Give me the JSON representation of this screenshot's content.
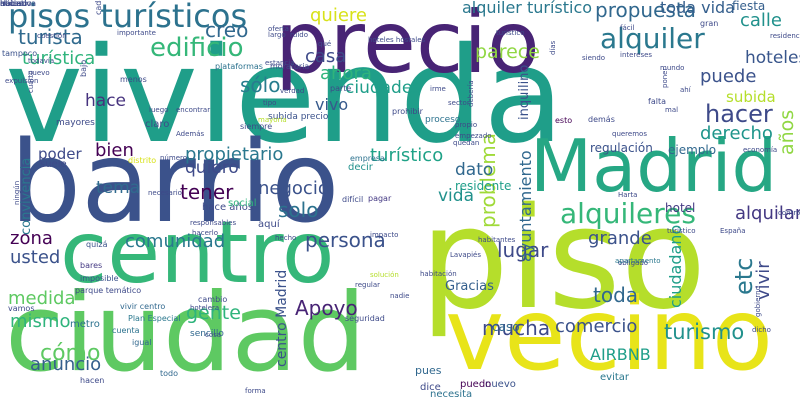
{
  "words": [
    {
      "text": "vivienda",
      "color": "#1f9e89",
      "orient": "h"
    },
    {
      "text": "barrio",
      "color": "#3b528b",
      "orient": "h"
    },
    {
      "text": "piso",
      "color": "#b5de2b",
      "orient": "h"
    },
    {
      "text": "ciudad",
      "color": "#5ec962",
      "orient": "h"
    },
    {
      "text": "centro",
      "color": "#35b779",
      "orient": "h"
    },
    {
      "text": "vecino",
      "color": "#e8e419",
      "orient": "h"
    },
    {
      "text": "precio",
      "color": "#482475",
      "orient": "h"
    },
    {
      "text": "Madrid",
      "color": "#26a784",
      "orient": "h"
    },
    {
      "text": "pisos turísticos",
      "color": "#2c728e",
      "orient": "h"
    },
    {
      "text": "alquileres",
      "color": "#35b779",
      "orient": "h"
    },
    {
      "text": "propuesta",
      "color": "#31688e",
      "orient": "h"
    },
    {
      "text": "alquiler",
      "color": "#2a788e",
      "orient": "h"
    },
    {
      "text": "edificio",
      "color": "#35b779",
      "orient": "h"
    },
    {
      "text": "turista",
      "color": "#306a8e",
      "orient": "h"
    },
    {
      "text": "turística",
      "color": "#2fb47c",
      "orient": "h"
    },
    {
      "text": "calle",
      "color": "#21918c",
      "orient": "h"
    },
    {
      "text": "hoteles",
      "color": "#39568c",
      "orient": "h"
    },
    {
      "text": "puede",
      "color": "#3b528b",
      "orient": "h"
    },
    {
      "text": "hacer",
      "color": "#3e4a89",
      "orient": "h"
    },
    {
      "text": "derecho",
      "color": "#1f958b",
      "orient": "h"
    },
    {
      "text": "subida",
      "color": "#b5de2b",
      "orient": "h"
    },
    {
      "text": "años",
      "color": "#90d743",
      "orient": "v"
    },
    {
      "text": "parece",
      "color": "#90d743",
      "orient": "h"
    },
    {
      "text": "casa",
      "color": "#3e4a89",
      "orient": "h"
    },
    {
      "text": "ahora",
      "color": "#2fb47c",
      "orient": "h"
    },
    {
      "text": "ciudades",
      "color": "#1f9e89",
      "orient": "h"
    },
    {
      "text": "creo",
      "color": "#31688e",
      "orient": "h"
    },
    {
      "text": "sólo",
      "color": "#287d8e",
      "orient": "h"
    },
    {
      "text": "hace",
      "color": "#46327e",
      "orient": "h"
    },
    {
      "text": "vivo",
      "color": "#375a8c",
      "orient": "h"
    },
    {
      "text": "bien",
      "color": "#440154",
      "orient": "h"
    },
    {
      "text": "poder",
      "color": "#3e4a89",
      "orient": "h"
    },
    {
      "text": "propietario",
      "color": "#2a788e",
      "orient": "h"
    },
    {
      "text": "turístico",
      "color": "#1fa287",
      "orient": "h"
    },
    {
      "text": "problema",
      "color": "#a0da39",
      "orient": "v"
    },
    {
      "text": "dato",
      "color": "#31688e",
      "orient": "h"
    },
    {
      "text": "vida",
      "color": "#21918c",
      "orient": "h"
    },
    {
      "text": "negocio",
      "color": "#3b528b",
      "orient": "h"
    },
    {
      "text": "solo",
      "color": "#2c728e",
      "orient": "h"
    },
    {
      "text": "tener",
      "color": "#440154",
      "orient": "h"
    },
    {
      "text": "quiero",
      "color": "#3e4a89",
      "orient": "h"
    },
    {
      "text": "tema",
      "color": "#306a8e",
      "orient": "h"
    },
    {
      "text": "zona",
      "color": "#440154",
      "orient": "h"
    },
    {
      "text": "comunidad",
      "color": "#2a788e",
      "orient": "h"
    },
    {
      "text": "persona",
      "color": "#3b528b",
      "orient": "h"
    },
    {
      "text": "usted",
      "color": "#3b528b",
      "orient": "h"
    },
    {
      "text": "gente",
      "color": "#2fb47c",
      "orient": "h"
    },
    {
      "text": "Apoyo",
      "color": "#482475",
      "orient": "h"
    },
    {
      "text": "lugar",
      "color": "#3e4a89",
      "orient": "h"
    },
    {
      "text": "grande",
      "color": "#3b528b",
      "orient": "h"
    },
    {
      "text": "toda",
      "color": "#31688e",
      "orient": "h"
    },
    {
      "text": "etc",
      "color": "#2a788e",
      "orient": "v"
    },
    {
      "text": "vivir",
      "color": "#3e4a89",
      "orient": "v"
    },
    {
      "text": "alquilar",
      "color": "#443983",
      "orient": "h"
    },
    {
      "text": "medida",
      "color": "#5ec962",
      "orient": "h"
    },
    {
      "text": "mismo",
      "color": "#2fb47c",
      "orient": "h"
    },
    {
      "text": "mucha",
      "color": "#3e4a89",
      "orient": "h"
    },
    {
      "text": "comercio",
      "color": "#3b528b",
      "orient": "h"
    },
    {
      "text": "turismo",
      "color": "#21918c",
      "orient": "h"
    },
    {
      "text": "cómo",
      "color": "#5ec962",
      "orient": "h"
    },
    {
      "text": "anuncio",
      "color": "#355f8d",
      "orient": "h"
    },
    {
      "text": "AIRBNB",
      "color": "#1f9e89",
      "orient": "h"
    },
    {
      "text": "centro Madrid",
      "color": "#3b528b",
      "orient": "v"
    },
    {
      "text": "ayuntamiento",
      "color": "#31688e",
      "orient": "v"
    },
    {
      "text": "ciudadano",
      "color": "#1f9e89",
      "orient": "v"
    },
    {
      "text": "convivencia",
      "color": "#2a788e",
      "orient": "v"
    },
    {
      "text": "inquilino",
      "color": "#3b528b",
      "orient": "v"
    },
    {
      "text": "quiere",
      "color": "#d8e219",
      "orient": "h"
    },
    {
      "text": "alquiler turístico",
      "color": "#2a788e",
      "orient": "h"
    },
    {
      "text": "toda vida",
      "color": "#355f8d",
      "orient": "h"
    },
    {
      "text": "fiesta",
      "color": "#355f8d",
      "orient": "h"
    },
    {
      "text": "regulación",
      "color": "#3b528b",
      "orient": "h"
    },
    {
      "text": "ejemplo",
      "color": "#31688e",
      "orient": "h"
    },
    {
      "text": "residente",
      "color": "#1f9e89",
      "orient": "h"
    },
    {
      "text": "hotel",
      "color": "#443983",
      "orient": "h"
    },
    {
      "text": "caso",
      "color": "#31688e",
      "orient": "h"
    },
    {
      "text": "Gracias",
      "color": "#355f8d",
      "orient": "h"
    },
    {
      "text": "pues",
      "color": "#31688e",
      "orient": "h"
    },
    {
      "text": "nuevo",
      "color": "#3b528b",
      "orient": "h"
    },
    {
      "text": "evitar",
      "color": "#2a788e",
      "orient": "h"
    },
    {
      "text": "puedo",
      "color": "#440154",
      "orient": "h"
    },
    {
      "text": "dice",
      "color": "#3e4a89",
      "orient": "h"
    },
    {
      "text": "necesita",
      "color": "#2c728e",
      "orient": "h"
    },
    {
      "text": "todo",
      "color": "#31688e",
      "orient": "h"
    },
    {
      "text": "hacen",
      "color": "#3e4a89",
      "orient": "h"
    },
    {
      "text": "metro",
      "color": "#2c728e",
      "orient": "h"
    },
    {
      "text": "vivir centro",
      "color": "#31688e",
      "orient": "h"
    },
    {
      "text": "Plan Especial",
      "color": "#2a788e",
      "orient": "h"
    },
    {
      "text": "cuenta",
      "color": "#2c728e",
      "orient": "h"
    },
    {
      "text": "igual",
      "color": "#31688e",
      "orient": "h"
    },
    {
      "text": "sencillo",
      "color": "#31688e",
      "orient": "h"
    },
    {
      "text": "cambio",
      "color": "#3e4a89",
      "orient": "h"
    },
    {
      "text": "vamos",
      "color": "#3e4a89",
      "orient": "h"
    },
    {
      "text": "parque temático",
      "color": "#3e4a89",
      "orient": "h"
    },
    {
      "text": "imposible",
      "color": "#3b528b",
      "orient": "h"
    },
    {
      "text": "bares",
      "color": "#443983",
      "orient": "h"
    },
    {
      "text": "quizá",
      "color": "#3b528b",
      "orient": "h"
    },
    {
      "text": "hace años",
      "color": "#3e4a89",
      "orient": "h"
    },
    {
      "text": "social",
      "color": "#2fb47c",
      "orient": "h"
    },
    {
      "text": "aquí",
      "color": "#3e4a89",
      "orient": "h"
    },
    {
      "text": "decir",
      "color": "#21918c",
      "orient": "h"
    },
    {
      "text": "empresa",
      "color": "#2c728e",
      "orient": "h"
    },
    {
      "text": "difícil",
      "color": "#3e4a89",
      "orient": "h"
    },
    {
      "text": "pagar",
      "color": "#443983",
      "orient": "h"
    },
    {
      "text": "suele",
      "color": "#3e4a89",
      "orient": "h"
    },
    {
      "text": "distrito",
      "color": "#d8e219",
      "orient": "h"
    },
    {
      "text": "mayores",
      "color": "#3e4a89",
      "orient": "h"
    },
    {
      "text": "claro",
      "color": "#3e4a89",
      "orient": "h"
    },
    {
      "text": "siempre",
      "color": "#3e4a89",
      "orient": "h"
    },
    {
      "text": "subida precio",
      "color": "#3b528b",
      "orient": "h"
    },
    {
      "text": "prohibir",
      "color": "#3e4a89",
      "orient": "h"
    },
    {
      "text": "proceso",
      "color": "#2c728e",
      "orient": "h"
    },
    {
      "text": "esto",
      "color": "#440154",
      "orient": "h"
    },
    {
      "text": "demás",
      "color": "#3e4a89",
      "orient": "h"
    },
    {
      "text": "falta",
      "color": "#3e4a89",
      "orient": "h"
    },
    {
      "text": "tampoco",
      "color": "#3b528b",
      "orient": "h"
    },
    {
      "text": "plataformas",
      "color": "#2c728e",
      "orient": "h"
    },
    {
      "text": "moratoria",
      "color": "#3e4a89",
      "orient": "h"
    },
    {
      "text": "parte",
      "color": "#3e4a89",
      "orient": "h"
    },
    {
      "text": "importante",
      "color": "#3e4a89",
      "orient": "h"
    },
    {
      "text": "oferta",
      "color": "#3e4a89",
      "orient": "h"
    },
    {
      "text": "hoteles hostales",
      "color": "#3e4a89",
      "orient": "h"
    },
    {
      "text": "intereses",
      "color": "#3e4a89",
      "orient": "h"
    },
    {
      "text": "residencial",
      "color": "#3e4a89",
      "orient": "h"
    },
    {
      "text": "gran",
      "color": "#3e4a89",
      "orient": "h"
    },
    {
      "text": "menos",
      "color": "#3e4a89",
      "orient": "h"
    },
    {
      "text": "bajo",
      "color": "#3e4a89",
      "orient": "v"
    },
    {
      "text": "nuevo",
      "color": "#3e4a89",
      "orient": "h"
    },
    {
      "text": "Además",
      "color": "#3e4a89",
      "orient": "h"
    },
    {
      "text": "mayoría",
      "color": "#b5de2b",
      "orient": "h"
    },
    {
      "text": "empezado",
      "color": "#3e4a89",
      "orient": "h"
    },
    {
      "text": "tipo",
      "color": "#3e4a89",
      "orient": "h"
    },
    {
      "text": "encontrar",
      "color": "#3e4a89",
      "orient": "h"
    },
    {
      "text": "luego",
      "color": "#3e4a89",
      "orient": "h"
    },
    {
      "text": "irme",
      "color": "#3e4a89",
      "orient": "h"
    },
    {
      "text": "poner",
      "color": "#3e4a89",
      "orient": "v"
    },
    {
      "text": "debería",
      "color": "#3e4a89",
      "orient": "v"
    },
    {
      "text": "ahí",
      "color": "#3e4a89",
      "orient": "h"
    },
    {
      "text": "turístico",
      "color": "#3e4a89",
      "orient": "h"
    },
    {
      "text": "España",
      "color": "#3e4a89",
      "orient": "h"
    },
    {
      "text": "Harta",
      "color": "#3e4a89",
      "orient": "h"
    },
    {
      "text": "obligado",
      "color": "#3e4a89",
      "orient": "h"
    },
    {
      "text": "apartamento",
      "color": "#2a788e",
      "orient": "h"
    },
    {
      "text": "Lavapiés",
      "color": "#3e4a89",
      "orient": "h"
    },
    {
      "text": "habitantes",
      "color": "#3e4a89",
      "orient": "h"
    },
    {
      "text": "habitación",
      "color": "#3e4a89",
      "orient": "h"
    },
    {
      "text": "solución",
      "color": "#b5de2b",
      "orient": "h"
    },
    {
      "text": "regular",
      "color": "#3e4a89",
      "orient": "h"
    },
    {
      "text": "nadie",
      "color": "#3e4a89",
      "orient": "h"
    },
    {
      "text": "seguridad",
      "color": "#3e4a89",
      "orient": "h"
    },
    {
      "text": "forma",
      "color": "#3e4a89",
      "orient": "h"
    },
    {
      "text": "cosa",
      "color": "#3e4a89",
      "orient": "h"
    },
    {
      "text": "dicho",
      "color": "#3e4a89",
      "orient": "h"
    },
    {
      "text": "gobierno",
      "color": "#3e4a89",
      "orient": "v"
    },
    {
      "text": "número",
      "color": "#3e4a89",
      "orient": "h"
    },
    {
      "text": "ningún",
      "color": "#3e4a89",
      "orient": "v"
    },
    {
      "text": "hacerlo",
      "color": "#3e4a89",
      "orient": "h"
    },
    {
      "text": "responsables",
      "color": "#3e4a89",
      "orient": "h"
    },
    {
      "text": "hecho",
      "color": "#3e4a89",
      "orient": "h"
    },
    {
      "text": "impacto",
      "color": "#3e4a89",
      "orient": "h"
    },
    {
      "text": "hotelera",
      "color": "#3e4a89",
      "orient": "h"
    },
    {
      "text": "necesario",
      "color": "#3e4a89",
      "orient": "h"
    },
    {
      "text": "expulsión",
      "color": "#3e4a89",
      "orient": "h"
    },
    {
      "text": "ruido",
      "color": "#3e4a89",
      "orient": "h"
    },
    {
      "text": "cada",
      "color": "#3e4a89",
      "orient": "v"
    },
    {
      "text": "días",
      "color": "#3e4a89",
      "orient": "v"
    },
    {
      "text": "estancia",
      "color": "#3e4a89",
      "orient": "h"
    },
    {
      "text": "sector",
      "color": "#3e4a89",
      "orient": "h"
    },
    {
      "text": "propio",
      "color": "#3e4a89",
      "orient": "h"
    },
    {
      "text": "quedan",
      "color": "#3e4a89",
      "orient": "h"
    },
    {
      "text": "siendo",
      "color": "#3e4a89",
      "orient": "h"
    },
    {
      "text": "fácil",
      "color": "#3e4a89",
      "orient": "h"
    },
    {
      "text": "mundo",
      "color": "#3e4a89",
      "orient": "h"
    },
    {
      "text": "mal",
      "color": "#3e4a89",
      "orient": "h"
    },
    {
      "text": "queremos",
      "color": "#3e4a89",
      "orient": "h"
    },
    {
      "text": "economía",
      "color": "#3e4a89",
      "orient": "h"
    },
    {
      "text": "controlar",
      "color": "#3e4a89",
      "orient": "h"
    },
    {
      "text": "cuestión",
      "color": "#3e4a89",
      "orient": "h"
    },
    {
      "text": "cuarto",
      "color": "#3e4a89",
      "orient": "v"
    },
    {
      "text": "turístico",
      "color": "#3e4a89",
      "orient": "h"
    },
    {
      "text": "qué",
      "color": "#3e4a89",
      "orient": "h"
    },
    {
      "text": "largo",
      "color": "#3e4a89",
      "orient": "h"
    },
    {
      "text": "verdad",
      "color": "#3e4a89",
      "orient": "h"
    },
    {
      "text": "todavía",
      "color": "#3e4a89",
      "orient": "h"
    },
    {
      "text": "acceso",
      "color": "#3e4a89",
      "orient": "h"
    },
    {
      "text": "iniciativa",
      "color": "#3e4a89",
      "orient": "h"
    },
    {
      "text": "Haber",
      "color": "#3e4a89",
      "orient": "h"
    },
    {
      "text": "ubicado",
      "color": "#3e4a89",
      "orient": "h"
    }
  ]
}
